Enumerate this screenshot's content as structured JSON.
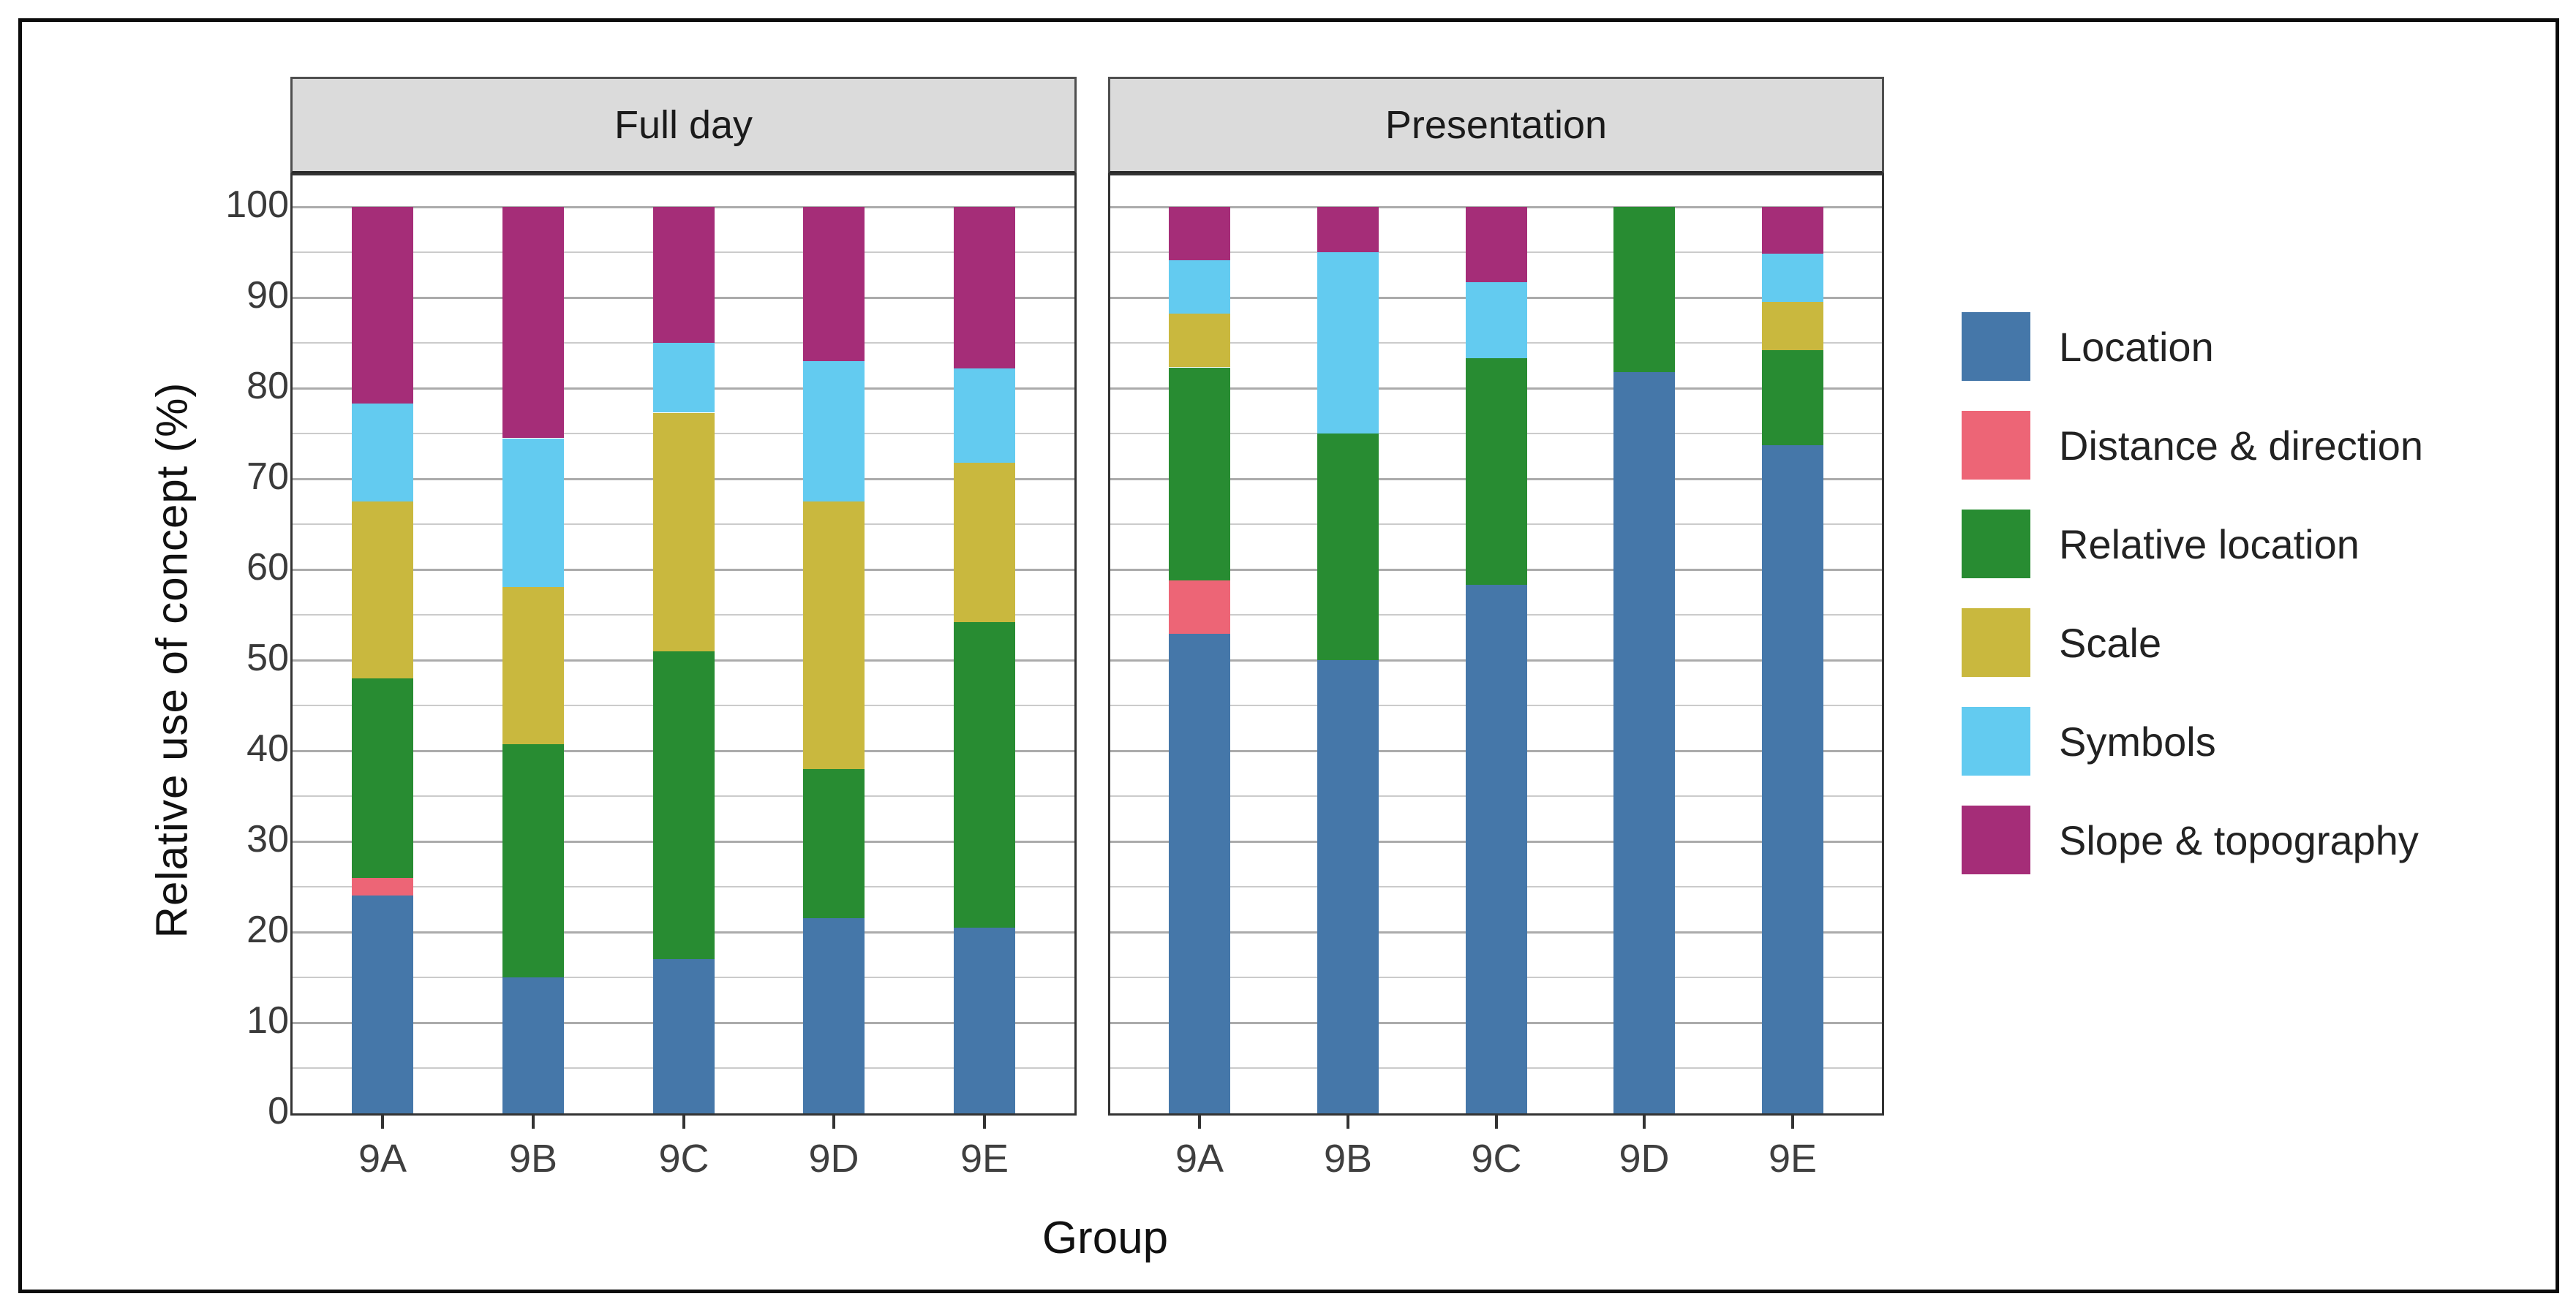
{
  "chart_data": {
    "type": "bar",
    "stacked": true,
    "title": "",
    "xlabel": "Group",
    "ylabel": "Relative use of concept (%)",
    "ylim": [
      0,
      100
    ],
    "yticks": [
      0,
      10,
      20,
      30,
      40,
      50,
      60,
      70,
      80,
      90,
      100
    ],
    "minor_grid_step": 5,
    "grid": true,
    "legend_position": "right",
    "categories": [
      "9A",
      "9B",
      "9C",
      "9D",
      "9E"
    ],
    "legend": [
      {
        "label": "Location",
        "color": "#4577A9"
      },
      {
        "label": "Distance & direction",
        "color": "#ED6576"
      },
      {
        "label": "Relative location",
        "color": "#288C32"
      },
      {
        "label": "Scale",
        "color": "#C9B83E"
      },
      {
        "label": "Symbols",
        "color": "#63CBF0"
      },
      {
        "label": "Slope & topography",
        "color": "#A52D78"
      }
    ],
    "facets": [
      {
        "label": "Full day",
        "series": [
          {
            "name": "Location",
            "values": [
              24.0,
              15.0,
              17.0,
              21.5,
              20.5
            ]
          },
          {
            "name": "Distance & direction",
            "values": [
              2.0,
              0.0,
              0.0,
              0.0,
              0.0
            ]
          },
          {
            "name": "Relative location",
            "values": [
              22.0,
              25.7,
              34.0,
              16.5,
              33.7
            ]
          },
          {
            "name": "Scale",
            "values": [
              19.5,
              17.4,
              26.3,
              29.5,
              17.6
            ]
          },
          {
            "name": "Symbols",
            "values": [
              10.8,
              16.4,
              7.7,
              15.5,
              10.4
            ]
          },
          {
            "name": "Slope & topography",
            "values": [
              21.7,
              25.5,
              15.0,
              17.0,
              17.8
            ]
          }
        ]
      },
      {
        "label": "Presentation",
        "series": [
          {
            "name": "Location",
            "values": [
              52.9,
              50.0,
              58.3,
              81.8,
              73.7
            ]
          },
          {
            "name": "Distance & direction",
            "values": [
              5.9,
              0.0,
              0.0,
              0.0,
              0.0
            ]
          },
          {
            "name": "Relative location",
            "values": [
              23.5,
              25.0,
              25.0,
              18.2,
              10.5
            ]
          },
          {
            "name": "Scale",
            "values": [
              5.9,
              0.0,
              0.0,
              0.0,
              5.3
            ]
          },
          {
            "name": "Symbols",
            "values": [
              5.9,
              20.0,
              8.4,
              0.0,
              5.3
            ]
          },
          {
            "name": "Slope & topography",
            "values": [
              5.9,
              5.0,
              8.3,
              0.0,
              5.2
            ]
          }
        ]
      }
    ]
  }
}
